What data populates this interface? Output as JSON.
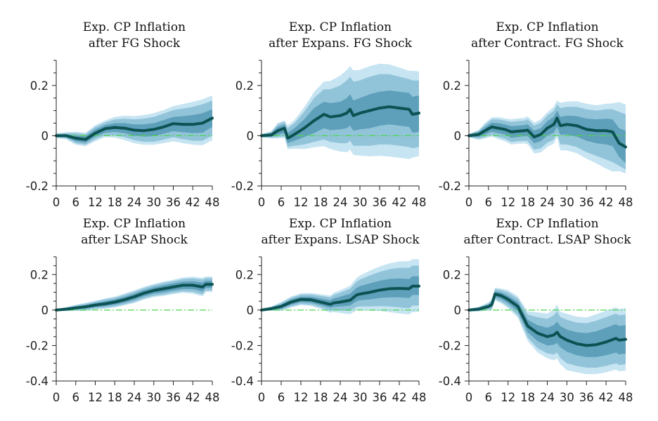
{
  "figure": {
    "colors": {
      "outer_band": "#c6e4f2",
      "mid_band": "#92c4d9",
      "inner_band": "#5e9fba",
      "median": "#0c5252",
      "zero_line": "#4cd54c"
    }
  },
  "chart_data": [
    {
      "type": "line",
      "title": [
        "Exp. CP Inflation",
        "after FG Shock"
      ],
      "x": [
        0,
        3,
        6,
        9,
        12,
        15,
        18,
        21,
        24,
        27,
        30,
        33,
        36,
        39,
        42,
        45,
        48
      ],
      "xticks": [
        0,
        6,
        12,
        18,
        24,
        30,
        36,
        42,
        48
      ],
      "ylim": [
        -0.2,
        0.3
      ],
      "yticks": [
        -0.2,
        0,
        0.2
      ],
      "ytick_labels": [
        "-0.2",
        "0",
        "0.2"
      ],
      "median": [
        0,
        0,
        -0.01,
        -0.015,
        0.01,
        0.028,
        0.033,
        0.03,
        0.022,
        0.02,
        0.025,
        0.035,
        0.048,
        0.045,
        0.045,
        0.05,
        0.07
      ],
      "inner_upper": [
        0.004,
        0.006,
        0.002,
        -0.002,
        0.025,
        0.042,
        0.05,
        0.05,
        0.045,
        0.045,
        0.05,
        0.062,
        0.075,
        0.078,
        0.082,
        0.09,
        0.105
      ],
      "inner_lower": [
        -0.004,
        -0.006,
        -0.022,
        -0.028,
        -0.004,
        0.012,
        0.015,
        0.01,
        0.0,
        -0.004,
        -0.002,
        0.008,
        0.018,
        0.014,
        0.01,
        0.012,
        0.035
      ],
      "mid_upper": [
        0.007,
        0.01,
        0.01,
        0.006,
        0.035,
        0.052,
        0.065,
        0.068,
        0.065,
        0.068,
        0.075,
        0.088,
        0.102,
        0.108,
        0.115,
        0.125,
        0.14
      ],
      "mid_lower": [
        -0.007,
        -0.01,
        -0.03,
        -0.036,
        -0.014,
        0.002,
        0.002,
        -0.006,
        -0.018,
        -0.024,
        -0.024,
        -0.016,
        -0.006,
        -0.014,
        -0.02,
        -0.02,
        0.0
      ],
      "outer_upper": [
        0.01,
        0.014,
        0.016,
        0.012,
        0.042,
        0.06,
        0.075,
        0.08,
        0.078,
        0.082,
        0.09,
        0.102,
        0.118,
        0.126,
        0.135,
        0.145,
        0.16
      ],
      "outer_lower": [
        -0.01,
        -0.014,
        -0.036,
        -0.042,
        -0.022,
        -0.006,
        -0.008,
        -0.018,
        -0.03,
        -0.036,
        -0.036,
        -0.03,
        -0.022,
        -0.03,
        -0.036,
        -0.038,
        -0.018
      ],
      "zero_line": 0
    },
    {
      "type": "line",
      "title": [
        "Exp. CP Inflation",
        "after Expans. FG Shock"
      ],
      "x": [
        0,
        3,
        5,
        7,
        8,
        10,
        13,
        16,
        19,
        21,
        24,
        26,
        27,
        28,
        30,
        33,
        36,
        39,
        42,
        45,
        46,
        48
      ],
      "xticks": [
        0,
        6,
        12,
        18,
        24,
        30,
        36,
        42,
        48
      ],
      "ylim": [
        -0.2,
        0.3
      ],
      "yticks": [
        -0.2,
        0,
        0.2
      ],
      "ytick_labels": [
        "-0.2",
        "0",
        "0.2"
      ],
      "median": [
        0,
        0.003,
        0.02,
        0.03,
        -0.01,
        0.005,
        0.03,
        0.06,
        0.085,
        0.075,
        0.08,
        0.09,
        0.105,
        0.08,
        0.09,
        0.1,
        0.11,
        0.115,
        0.11,
        0.105,
        0.085,
        0.09
      ],
      "inner_upper": [
        0.004,
        0.01,
        0.035,
        0.045,
        0.012,
        0.03,
        0.065,
        0.11,
        0.135,
        0.13,
        0.135,
        0.15,
        0.165,
        0.14,
        0.15,
        0.165,
        0.175,
        0.18,
        0.175,
        0.17,
        0.155,
        0.16
      ],
      "inner_lower": [
        -0.004,
        -0.004,
        0.005,
        0.01,
        -0.03,
        -0.02,
        -0.005,
        0.01,
        0.03,
        0.022,
        0.025,
        0.03,
        0.04,
        0.02,
        0.025,
        0.03,
        0.04,
        0.045,
        0.04,
        0.035,
        0.012,
        0.015
      ],
      "mid_upper": [
        0.006,
        0.015,
        0.045,
        0.055,
        0.03,
        0.05,
        0.095,
        0.15,
        0.185,
        0.185,
        0.2,
        0.22,
        0.235,
        0.215,
        0.22,
        0.235,
        0.245,
        0.245,
        0.235,
        0.225,
        0.22,
        0.22
      ],
      "mid_lower": [
        -0.006,
        -0.008,
        -0.005,
        -0.002,
        -0.045,
        -0.04,
        -0.035,
        -0.025,
        -0.015,
        -0.025,
        -0.03,
        -0.03,
        -0.02,
        -0.04,
        -0.04,
        -0.04,
        -0.035,
        -0.035,
        -0.04,
        -0.045,
        -0.05,
        -0.045
      ]
    },
    {
      "type": "line",
      "title": [
        "Exp. CP Inflation",
        "after Contract. FG Shock"
      ],
      "x": [
        0,
        3,
        5,
        7,
        9,
        11,
        13,
        15,
        17,
        18,
        20,
        22,
        24,
        26,
        27,
        28,
        30,
        33,
        36,
        39,
        42,
        44,
        46,
        48
      ],
      "xticks": [
        0,
        6,
        12,
        18,
        24,
        30,
        36,
        42,
        48
      ],
      "ylim": [
        -0.2,
        0.3
      ],
      "yticks": [
        -0.2,
        0,
        0.2
      ],
      "ytick_labels": [
        "-0.2",
        "0",
        "0.2"
      ],
      "median": [
        0,
        0.005,
        0.02,
        0.035,
        0.03,
        0.025,
        0.015,
        0.018,
        0.02,
        0.022,
        -0.005,
        0.005,
        0.03,
        0.045,
        0.07,
        0.04,
        0.045,
        0.04,
        0.025,
        0.02,
        0.02,
        0.015,
        -0.03,
        -0.045
      ],
      "inner_upper": [
        0.004,
        0.015,
        0.035,
        0.052,
        0.05,
        0.045,
        0.038,
        0.04,
        0.042,
        0.045,
        0.02,
        0.03,
        0.058,
        0.075,
        0.1,
        0.075,
        0.08,
        0.078,
        0.068,
        0.065,
        0.068,
        0.065,
        0.03,
        0.02
      ],
      "inner_lower": [
        -0.004,
        -0.005,
        0.005,
        0.016,
        0.01,
        0.005,
        -0.008,
        -0.005,
        -0.002,
        -0.002,
        -0.03,
        -0.022,
        0.0,
        0.012,
        0.035,
        0.004,
        0.005,
        -0.004,
        -0.02,
        -0.03,
        -0.035,
        -0.042,
        -0.085,
        -0.11
      ],
      "mid_upper": [
        0.006,
        0.02,
        0.045,
        0.065,
        0.065,
        0.06,
        0.055,
        0.058,
        0.06,
        0.065,
        0.04,
        0.052,
        0.08,
        0.1,
        0.125,
        0.11,
        0.115,
        0.115,
        0.105,
        0.1,
        0.105,
        0.105,
        0.095,
        0.085
      ],
      "mid_lower": [
        -0.006,
        -0.012,
        -0.005,
        0.004,
        -0.005,
        -0.012,
        -0.025,
        -0.022,
        -0.02,
        -0.022,
        -0.055,
        -0.05,
        -0.028,
        -0.015,
        0.01,
        -0.035,
        -0.035,
        -0.045,
        -0.065,
        -0.08,
        -0.095,
        -0.105,
        -0.12,
        -0.135
      ]
    },
    {
      "type": "line",
      "title": [
        "Exp. CP Inflation",
        "after LSAP Shock"
      ],
      "x": [
        0,
        3,
        6,
        9,
        12,
        15,
        18,
        21,
        24,
        27,
        30,
        33,
        36,
        39,
        42,
        45,
        46,
        48
      ],
      "xticks": [
        0,
        6,
        12,
        18,
        24,
        30,
        36,
        42,
        48
      ],
      "ylim": [
        -0.4,
        0.3
      ],
      "yticks": [
        -0.4,
        -0.2,
        0,
        0.2
      ],
      "ytick_labels": [
        "-0.4",
        "-0.2",
        "0",
        "0.2"
      ],
      "median": [
        0,
        0.005,
        0.012,
        0.018,
        0.028,
        0.035,
        0.045,
        0.058,
        0.075,
        0.095,
        0.11,
        0.12,
        0.13,
        0.14,
        0.14,
        0.13,
        0.145,
        0.145
      ],
      "inner_upper": [
        0.003,
        0.01,
        0.02,
        0.028,
        0.04,
        0.05,
        0.06,
        0.075,
        0.092,
        0.112,
        0.128,
        0.14,
        0.15,
        0.16,
        0.162,
        0.155,
        0.165,
        0.165
      ],
      "inner_lower": [
        -0.003,
        0.0,
        0.004,
        0.008,
        0.016,
        0.022,
        0.03,
        0.042,
        0.058,
        0.078,
        0.092,
        0.1,
        0.11,
        0.118,
        0.118,
        0.105,
        0.125,
        0.125
      ],
      "mid_upper": [
        0.005,
        0.014,
        0.026,
        0.036,
        0.048,
        0.06,
        0.07,
        0.086,
        0.104,
        0.124,
        0.14,
        0.153,
        0.163,
        0.175,
        0.178,
        0.172,
        0.18,
        0.18
      ],
      "mid_lower": [
        -0.005,
        -0.004,
        -0.002,
        0.0,
        0.008,
        0.013,
        0.02,
        0.032,
        0.046,
        0.066,
        0.08,
        0.087,
        0.097,
        0.105,
        0.102,
        0.088,
        0.11,
        0.11
      ]
    },
    {
      "type": "line",
      "title": [
        "Exp. CP Inflation",
        "after Expans. LSAP Shock"
      ],
      "x": [
        0,
        3,
        6,
        9,
        12,
        15,
        18,
        21,
        22,
        24,
        27,
        29,
        30,
        33,
        36,
        39,
        42,
        45,
        46,
        48
      ],
      "xticks": [
        0,
        6,
        12,
        18,
        24,
        30,
        36,
        42,
        48
      ],
      "ylim": [
        -0.4,
        0.3
      ],
      "yticks": [
        -0.4,
        -0.2,
        0,
        0.2
      ],
      "ytick_labels": [
        "-0.4",
        "-0.2",
        "0",
        "0.2"
      ],
      "median": [
        0,
        0.008,
        0.02,
        0.045,
        0.06,
        0.058,
        0.045,
        0.032,
        0.04,
        0.045,
        0.055,
        0.085,
        0.09,
        0.1,
        0.112,
        0.12,
        0.122,
        0.12,
        0.135,
        0.135
      ],
      "inner_upper": [
        0.004,
        0.014,
        0.032,
        0.06,
        0.075,
        0.075,
        0.065,
        0.055,
        0.065,
        0.075,
        0.092,
        0.125,
        0.135,
        0.15,
        0.165,
        0.175,
        0.178,
        0.175,
        0.19,
        0.19
      ],
      "inner_lower": [
        -0.004,
        0.002,
        0.008,
        0.03,
        0.045,
        0.042,
        0.027,
        0.012,
        0.018,
        0.02,
        0.025,
        0.05,
        0.055,
        0.06,
        0.068,
        0.072,
        0.072,
        0.068,
        0.085,
        0.085
      ],
      "mid_upper": [
        0.006,
        0.018,
        0.04,
        0.07,
        0.087,
        0.088,
        0.08,
        0.072,
        0.085,
        0.098,
        0.12,
        0.16,
        0.172,
        0.195,
        0.215,
        0.23,
        0.238,
        0.238,
        0.25,
        0.25
      ],
      "mid_lower": [
        -0.006,
        -0.002,
        0.0,
        0.02,
        0.034,
        0.03,
        0.014,
        -0.005,
        0.0,
        -0.003,
        -0.005,
        0.018,
        0.02,
        0.02,
        0.022,
        0.02,
        0.015,
        0.01,
        0.025,
        0.025
      ]
    },
    {
      "type": "line",
      "title": [
        "Exp. CP Inflation",
        "after Contract. LSAP Shock"
      ],
      "x": [
        0,
        3,
        6,
        7,
        8,
        10,
        12,
        15,
        18,
        21,
        24,
        26,
        27,
        28,
        30,
        33,
        36,
        39,
        42,
        45,
        46,
        48
      ],
      "xticks": [
        0,
        6,
        12,
        18,
        24,
        30,
        36,
        42,
        48
      ],
      "ylim": [
        -0.4,
        0.3
      ],
      "yticks": [
        -0.4,
        -0.2,
        0,
        0.2
      ],
      "ytick_labels": [
        "-0.4",
        "-0.2",
        "0",
        "0.2"
      ],
      "median": [
        0,
        0.005,
        0.02,
        0.03,
        0.09,
        0.08,
        0.06,
        0.02,
        -0.09,
        -0.13,
        -0.15,
        -0.14,
        -0.125,
        -0.15,
        -0.17,
        -0.19,
        -0.2,
        -0.195,
        -0.18,
        -0.16,
        -0.17,
        -0.165
      ],
      "inner_upper": [
        0.004,
        0.012,
        0.03,
        0.045,
        0.105,
        0.098,
        0.08,
        0.045,
        -0.055,
        -0.085,
        -0.1,
        -0.085,
        -0.065,
        -0.09,
        -0.11,
        -0.125,
        -0.13,
        -0.12,
        -0.1,
        -0.08,
        -0.09,
        -0.085
      ],
      "inner_lower": [
        -0.004,
        -0.002,
        0.01,
        0.015,
        0.075,
        0.06,
        0.038,
        -0.008,
        -0.125,
        -0.175,
        -0.2,
        -0.195,
        -0.185,
        -0.21,
        -0.235,
        -0.255,
        -0.265,
        -0.265,
        -0.255,
        -0.24,
        -0.25,
        -0.245
      ],
      "mid_upper": [
        0.006,
        0.016,
        0.038,
        0.055,
        0.118,
        0.112,
        0.1,
        0.065,
        -0.025,
        -0.04,
        -0.05,
        -0.03,
        -0.005,
        -0.04,
        -0.055,
        -0.07,
        -0.075,
        -0.06,
        -0.04,
        -0.02,
        -0.03,
        -0.025
      ],
      "mid_lower": [
        -0.006,
        -0.006,
        0.002,
        0.005,
        0.062,
        0.045,
        0.02,
        -0.03,
        -0.155,
        -0.215,
        -0.245,
        -0.25,
        -0.24,
        -0.27,
        -0.3,
        -0.315,
        -0.325,
        -0.325,
        -0.315,
        -0.3,
        -0.31,
        -0.305
      ]
    }
  ]
}
